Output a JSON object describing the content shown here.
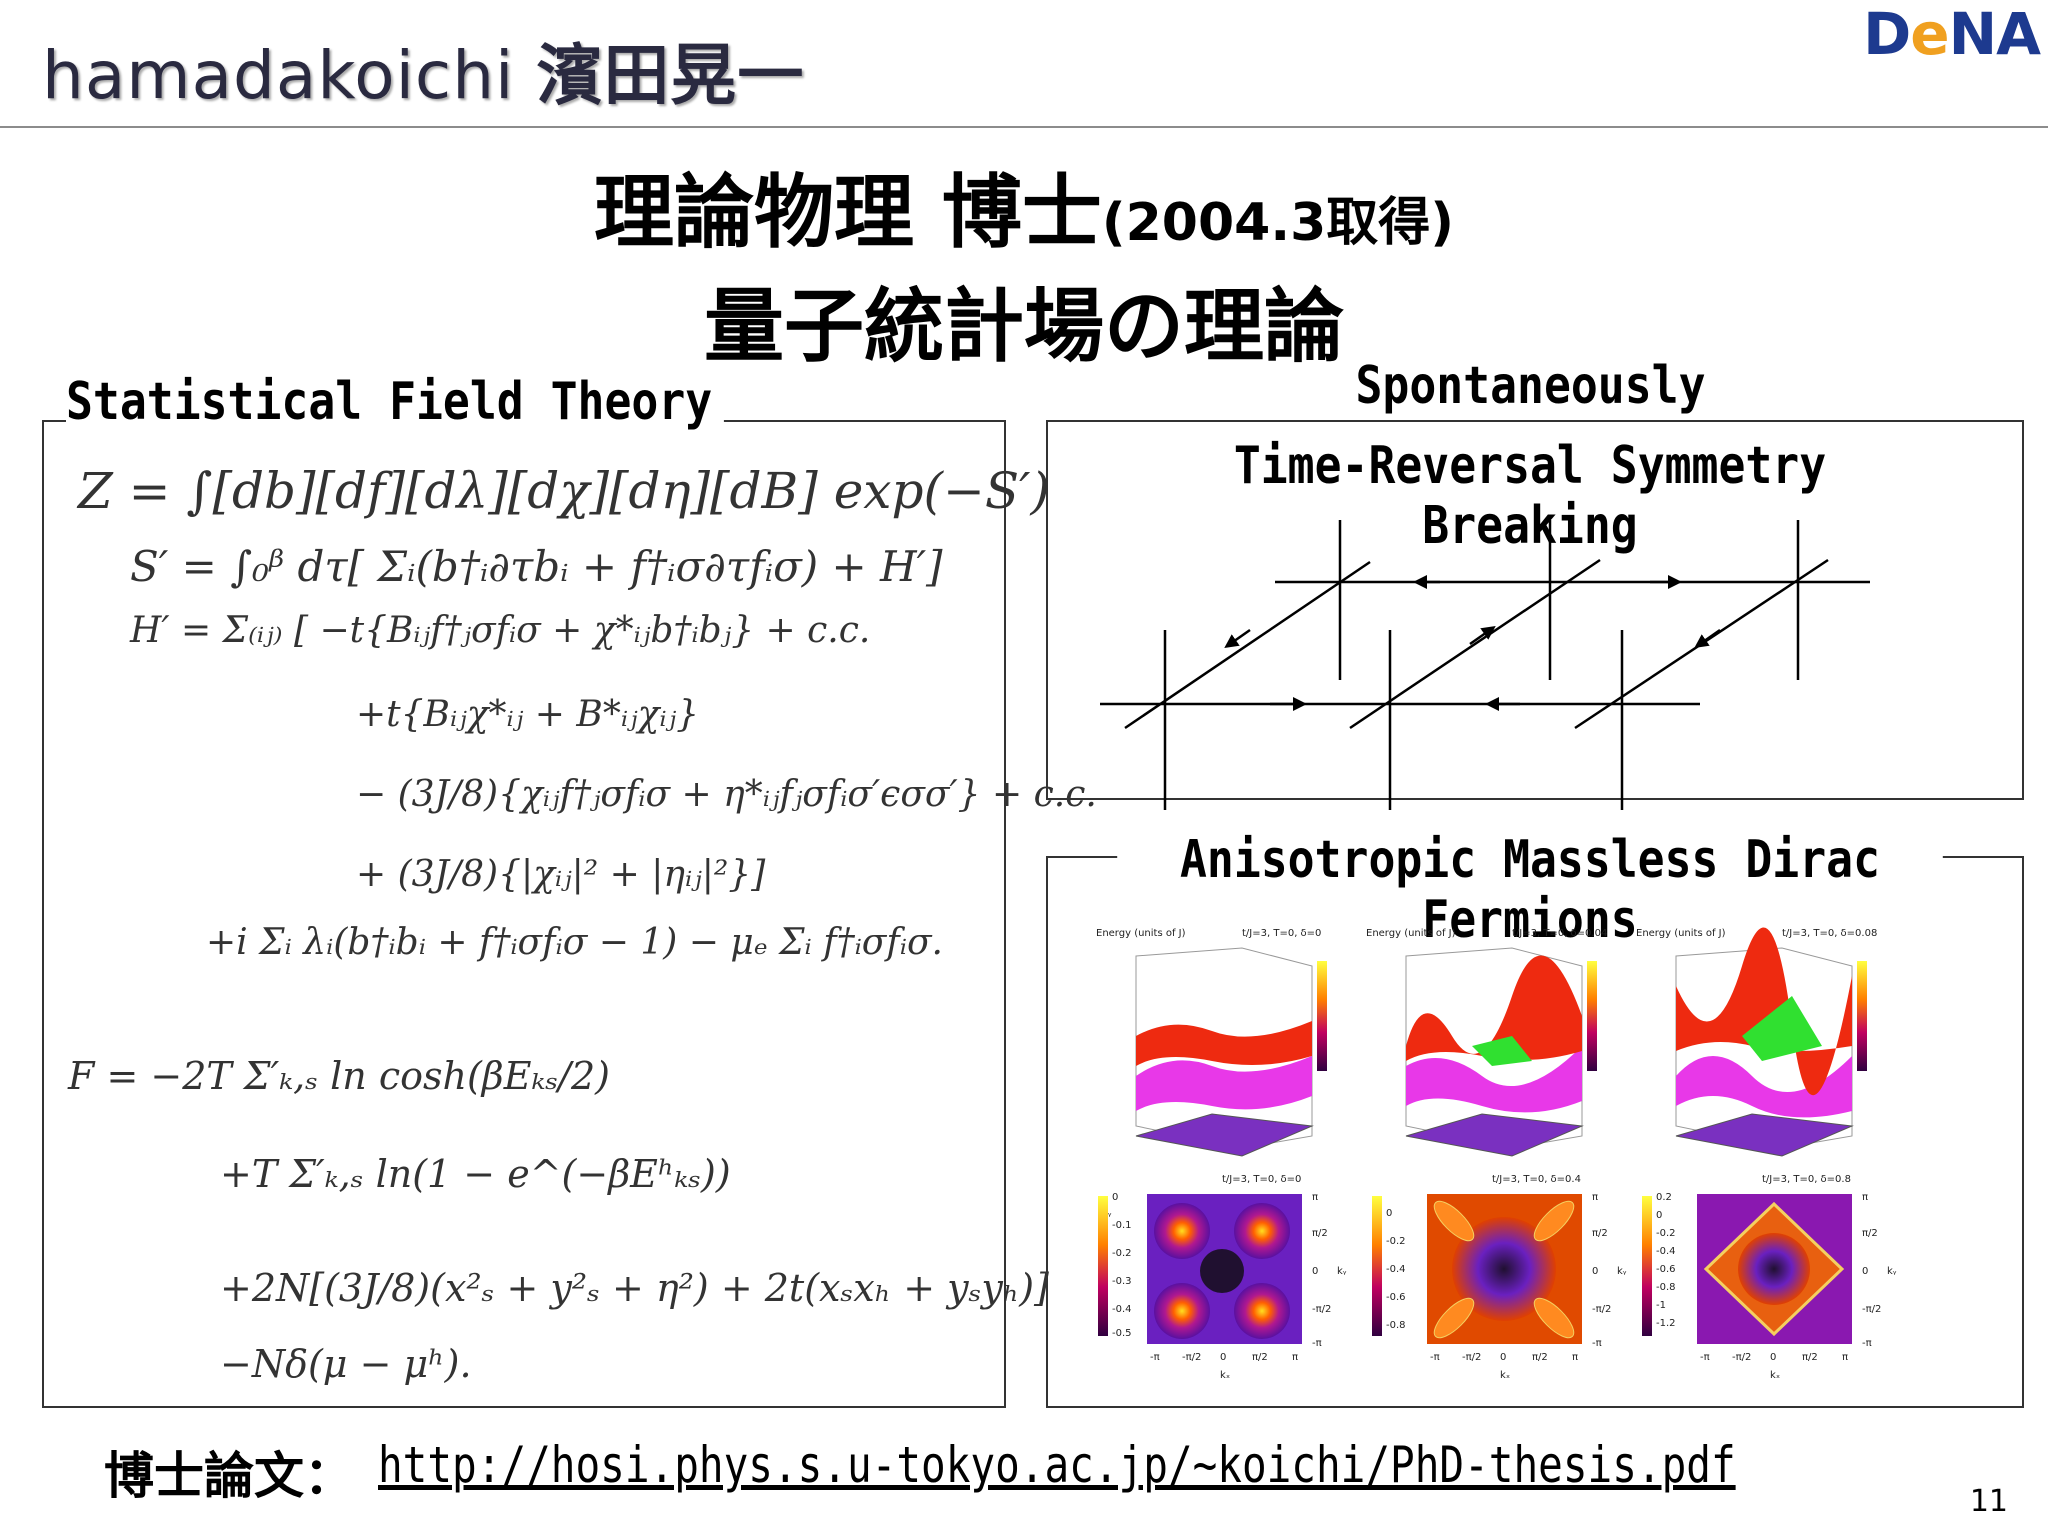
{
  "header": {
    "title_latin": "hamadakoichi",
    "title_jp": "濱田晃一",
    "logo_text_1": "D",
    "logo_text_e": "e",
    "logo_text_2": "NA"
  },
  "titles": {
    "line1_main": "理論物理 博士",
    "line1_year": "(2004.3取得)",
    "line2": "量子統計場の理論"
  },
  "sections": {
    "left": "Statistical Field Theory",
    "right_top_1": "Spontaneously",
    "right_top_2": "Time-Reversal Symmetry Breaking",
    "right_bottom": "Anisotropic Massless Dirac Fermions"
  },
  "equations": {
    "z": "Z = ∫[db][df][dλ][dχ][dη][dB] exp(−S′)",
    "s": "S′ = ∫₀ᵝ dτ[ Σᵢ(b†ᵢ∂τbᵢ + f†ᵢσ∂τfᵢσ) + H′]",
    "h1": "H′ = Σ₍ᵢⱼ₎ [     −t{Bᵢⱼf†ⱼσfᵢσ + χ*ᵢⱼb†ᵢbⱼ} + c.c.",
    "h2": "+t{Bᵢⱼχ*ᵢⱼ + B*ᵢⱼχᵢⱼ}",
    "h3": "− (3J/8){χᵢⱼf†ⱼσfᵢσ + η*ᵢⱼfⱼσfᵢσ′ϵσσ′} + c.c.",
    "h4": "+ (3J/8){|χᵢⱼ|² + |ηᵢⱼ|²}]",
    "h5": "+i Σᵢ     λᵢ(b†ᵢbᵢ + f†ᵢσfᵢσ − 1) − μₑ Σᵢ f†ᵢσfᵢσ.",
    "f1": "F =          −2T Σ′ₖ,ₛ ln cosh(βEₖₛ/2)",
    "f2": "+T Σ′ₖ,ₛ ln(1 − e^(−βEʰₖₛ))",
    "f3": "+2N[(3J/8)(x²ₛ + y²ₛ + η²) + 2t(xₛxₕ + yₛyₕ)]",
    "f4": "−Nδ(μ − μʰ)."
  },
  "plots": {
    "energy_label": "Energy (units of J)",
    "top_captions": [
      "t/J=3, T=0, δ=0",
      "t/J=3, T=0, δ=0.04",
      "t/J=3, T=0, δ=0.08"
    ],
    "bottom_captions": [
      "t/J=3, T=0, δ=0",
      "t/J=3, T=0, δ=0.4",
      "t/J=3, T=0, δ=0.8"
    ],
    "bottom_x_ticks": [
      "-π",
      "-π/2",
      "0",
      "π/2",
      "π"
    ],
    "bottom_y_ticks": [
      "π",
      "π/2",
      "0",
      "-π/2",
      "-π"
    ],
    "colorbar_ticks": [
      [
        "0",
        "-0.1",
        "-0.2",
        "-0.3",
        "-0.4",
        "-0.5"
      ],
      [
        "0",
        "-0.2",
        "-0.4",
        "-0.6",
        "-0.8"
      ],
      [
        "0.2",
        "0",
        "-0.2",
        "-0.4",
        "-0.6",
        "-0.8",
        "-1",
        "-1.2"
      ]
    ],
    "kx_label": "kₓ",
    "ky_label": "kᵧ"
  },
  "footer": {
    "label": "博士論文：",
    "link": "http://hosi.phys.s.u-tokyo.ac.jp/~koichi/PhD-thesis.pdf",
    "page_number": "11"
  },
  "colors": {
    "logo_blue": "#1d3a8f",
    "logo_orange": "#f0a020"
  }
}
